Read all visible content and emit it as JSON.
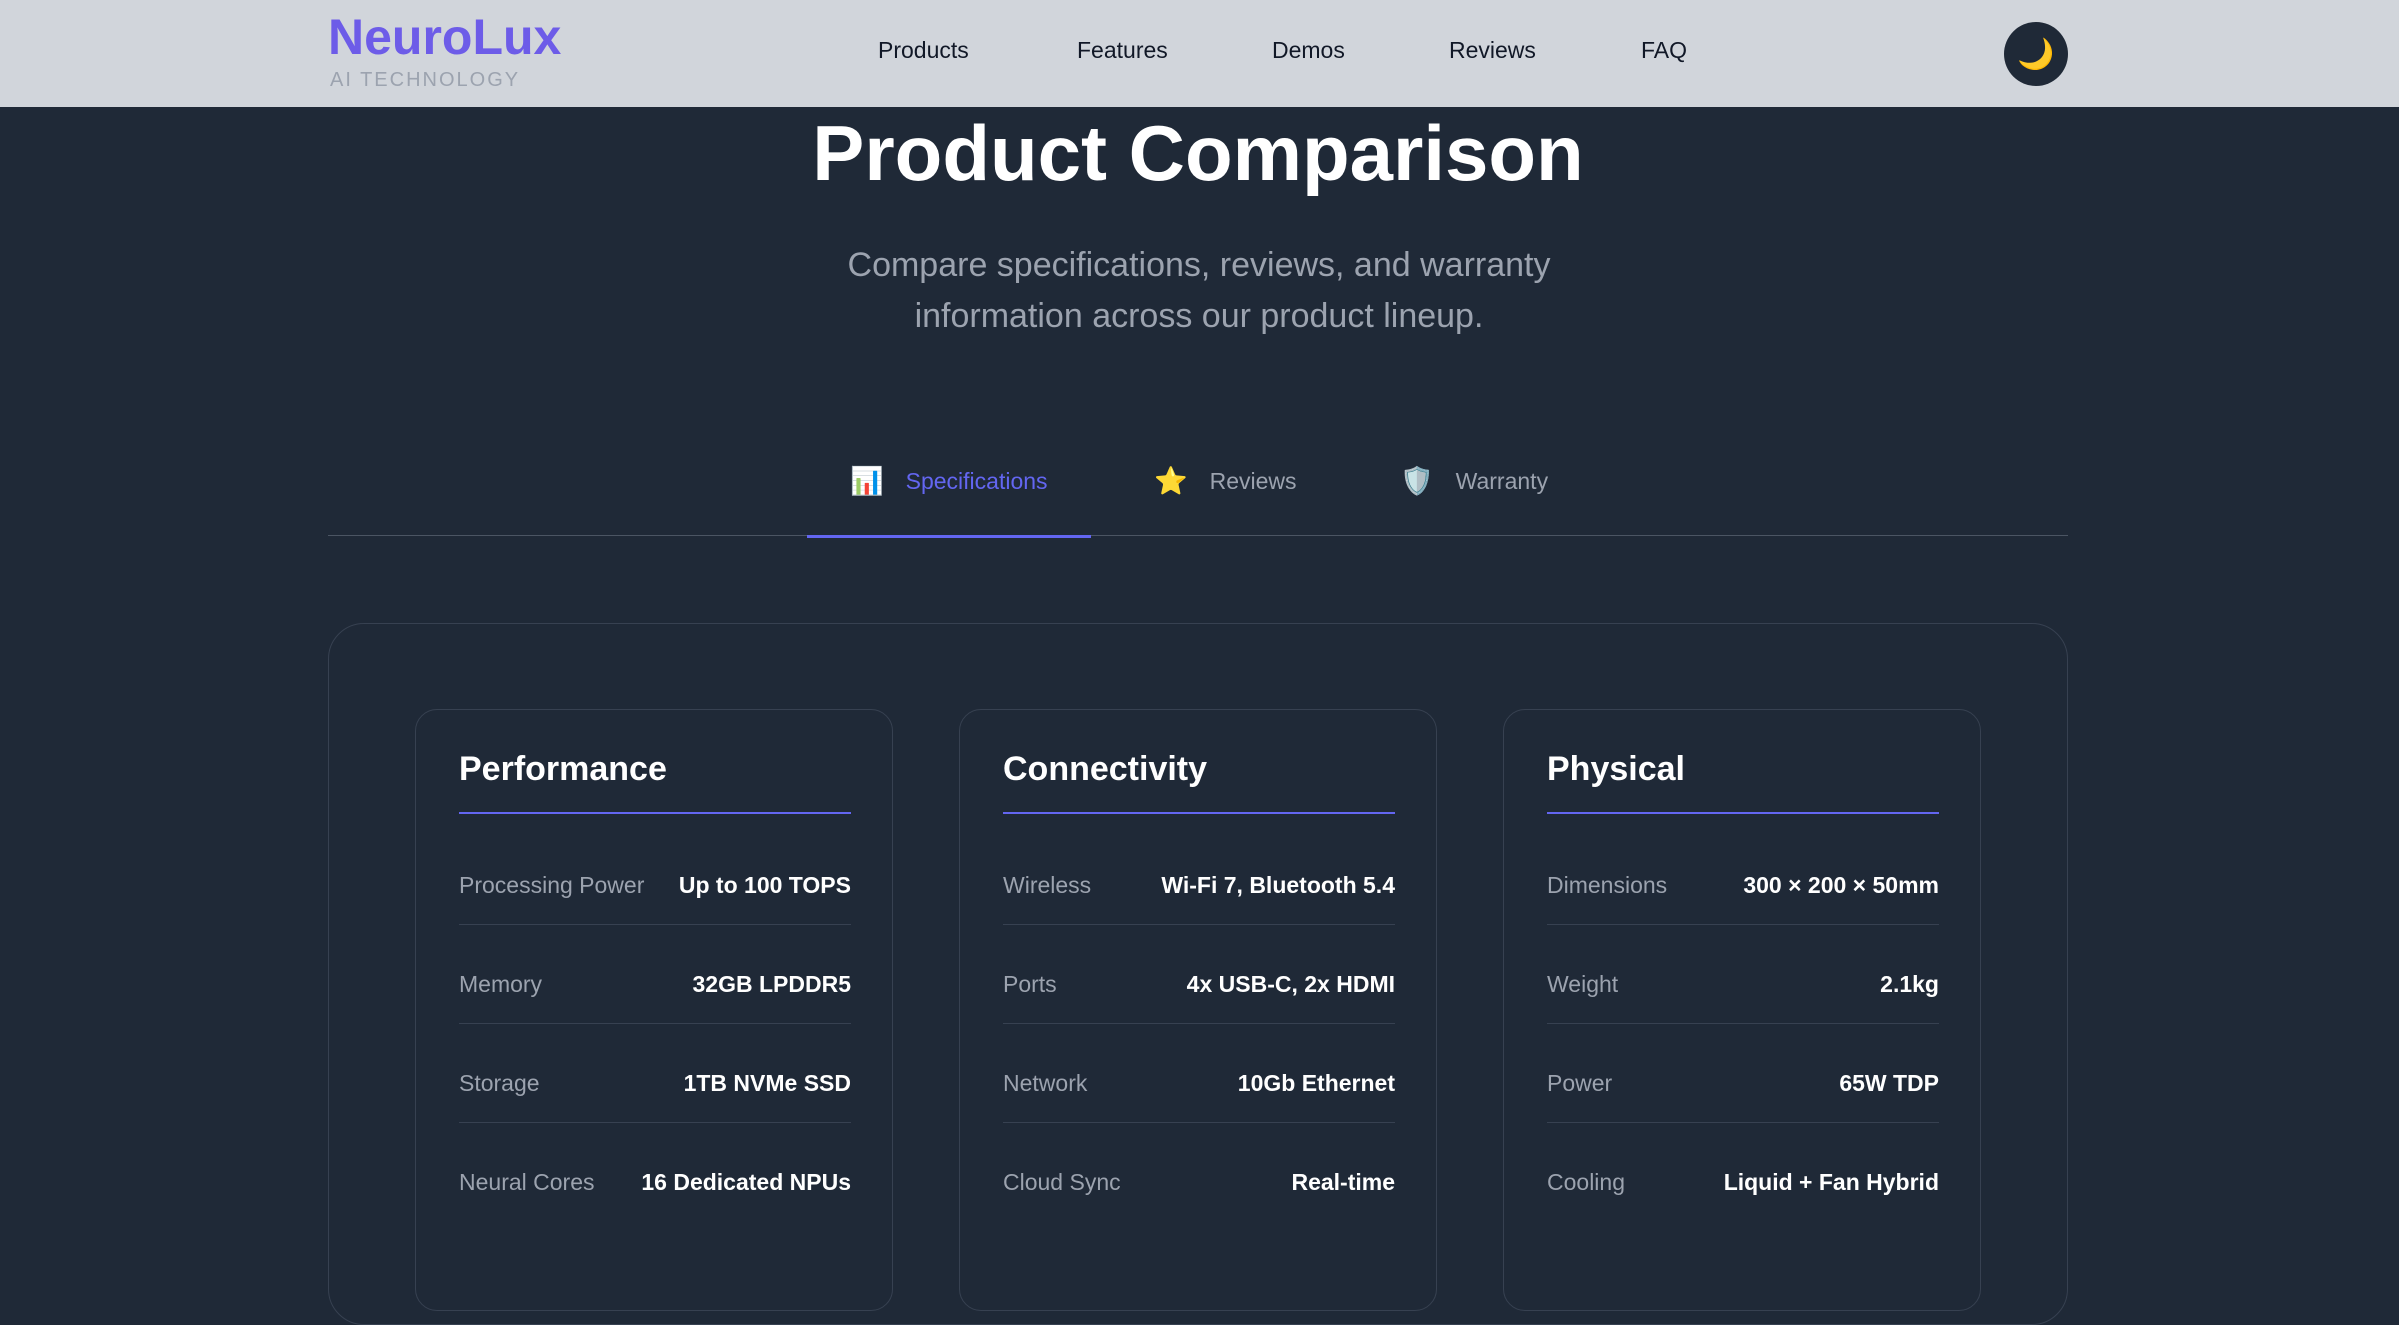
{
  "header": {
    "logo": "NeuroLux",
    "tagline": "AI TECHNOLOGY",
    "nav": [
      "Products",
      "Features",
      "Demos",
      "Reviews",
      "FAQ"
    ],
    "theme_icon": "🌙"
  },
  "hero": {
    "title": "Product Comparison",
    "subtitle": "Compare specifications, reviews, and warranty information across our product lineup."
  },
  "tabs": [
    {
      "icon": "📊",
      "label": "Specifications"
    },
    {
      "icon": "⭐",
      "label": "Reviews"
    },
    {
      "icon": "🛡️",
      "label": "Warranty"
    }
  ],
  "cards": [
    {
      "title": "Performance",
      "rows": [
        [
          "Processing Power",
          "Up to 100 TOPS"
        ],
        [
          "Memory",
          "32GB LPDDR5"
        ],
        [
          "Storage",
          "1TB NVMe SSD"
        ],
        [
          "Neural Cores",
          "16 Dedicated NPUs"
        ]
      ]
    },
    {
      "title": "Connectivity",
      "rows": [
        [
          "Wireless",
          "Wi-Fi 7, Bluetooth 5.4"
        ],
        [
          "Ports",
          "4x USB-C, 2x HDMI"
        ],
        [
          "Network",
          "10Gb Ethernet"
        ],
        [
          "Cloud Sync",
          "Real-time"
        ]
      ]
    },
    {
      "title": "Physical",
      "rows": [
        [
          "Dimensions",
          "300 × 200 × 50mm"
        ],
        [
          "Weight",
          "2.1kg"
        ],
        [
          "Power",
          "65W TDP"
        ],
        [
          "Cooling",
          "Liquid + Fan Hybrid"
        ]
      ]
    }
  ]
}
